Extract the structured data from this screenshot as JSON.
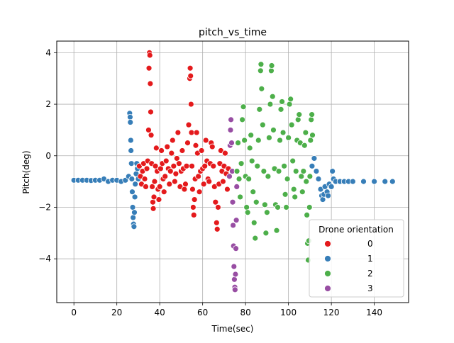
{
  "chart_data": {
    "type": "scatter",
    "title": "pitch_vs_time",
    "xlabel": "Time(sec)",
    "ylabel": "Pitch(deg)",
    "xlim": [
      -8,
      156
    ],
    "ylim": [
      -5.7,
      4.45
    ],
    "x_ticks": [
      0,
      20,
      40,
      60,
      80,
      100,
      120,
      140
    ],
    "y_ticks": [
      -4,
      -2,
      0,
      2,
      4
    ],
    "x_tick_labels": [
      "0",
      "20",
      "40",
      "60",
      "80",
      "100",
      "120",
      "140"
    ],
    "y_tick_labels": [
      "−4",
      "−2",
      "0",
      "2",
      "4"
    ],
    "grid": true,
    "legend": {
      "title": "Drone orientation",
      "placement": "lower-right",
      "entries": [
        {
          "label": "0",
          "color": "#e41a1c"
        },
        {
          "label": "1",
          "color": "#377eb8"
        },
        {
          "label": "2",
          "color": "#4daf4a"
        },
        {
          "label": "3",
          "color": "#984ea3"
        }
      ]
    },
    "series": [
      {
        "label": "1",
        "color": "#377eb8",
        "points": [
          [
            0,
            -0.95
          ],
          [
            2,
            -0.95
          ],
          [
            4,
            -0.95
          ],
          [
            6,
            -0.95
          ],
          [
            8,
            -0.96
          ],
          [
            10,
            -0.95
          ],
          [
            12,
            -0.95
          ],
          [
            14,
            -0.9
          ],
          [
            16,
            -1.0
          ],
          [
            18,
            -0.95
          ],
          [
            20,
            -0.95
          ],
          [
            22,
            -1.0
          ],
          [
            24,
            -0.95
          ],
          [
            25.5,
            -0.8
          ],
          [
            26,
            1.65
          ],
          [
            26.2,
            1.5
          ],
          [
            26.3,
            1.3
          ],
          [
            26.5,
            0.6
          ],
          [
            26.6,
            0.2
          ],
          [
            26.8,
            -0.3
          ],
          [
            27,
            -0.9
          ],
          [
            27.2,
            -1.4
          ],
          [
            27.4,
            -2.0
          ],
          [
            27.6,
            -2.4
          ],
          [
            27.8,
            -2.65
          ],
          [
            28,
            -2.75
          ],
          [
            28.2,
            -2.2
          ],
          [
            28.4,
            -1.6
          ],
          [
            28.6,
            -1.1
          ],
          [
            29,
            -0.7
          ],
          [
            29.3,
            -0.3
          ],
          [
            29.6,
            -0.5
          ],
          [
            30,
            -0.9
          ],
          [
            111,
            -0.4
          ],
          [
            112,
            -0.1
          ],
          [
            113,
            -0.6
          ],
          [
            114,
            -0.9
          ],
          [
            115,
            -1.3
          ],
          [
            115.5,
            -1.55
          ],
          [
            116,
            -1.7
          ],
          [
            116.5,
            -1.5
          ],
          [
            117,
            -1.2
          ],
          [
            118,
            -1.4
          ],
          [
            118.5,
            -1.55
          ],
          [
            119,
            -1.1
          ],
          [
            120,
            -1.2
          ],
          [
            120.5,
            -0.6
          ],
          [
            121,
            -0.9
          ],
          [
            122,
            -1.0
          ],
          [
            124,
            -1.0
          ],
          [
            126,
            -1.0
          ],
          [
            128,
            -1.0
          ],
          [
            130,
            -1.0
          ],
          [
            135,
            -1.0
          ],
          [
            140,
            -1.0
          ],
          [
            145,
            -1.0
          ],
          [
            148.5,
            -1.0
          ]
        ]
      },
      {
        "label": "0",
        "color": "#e41a1c",
        "points": [
          [
            30.5,
            -0.4
          ],
          [
            31,
            -0.8
          ],
          [
            31.5,
            -1.1
          ],
          [
            32,
            -0.6
          ],
          [
            32.5,
            -0.3
          ],
          [
            33,
            -0.9
          ],
          [
            33.5,
            -1.2
          ],
          [
            34,
            -0.5
          ],
          [
            34.4,
            -0.2
          ],
          [
            34.8,
            1.0
          ],
          [
            35,
            3.4
          ],
          [
            35.2,
            4.0
          ],
          [
            35.4,
            3.9
          ],
          [
            35.6,
            2.8
          ],
          [
            35.8,
            1.7
          ],
          [
            36,
            0.8
          ],
          [
            36.2,
            -0.3
          ],
          [
            36.5,
            -1.2
          ],
          [
            36.8,
            -1.8
          ],
          [
            37,
            -2.05
          ],
          [
            37.3,
            -1.6
          ],
          [
            37.6,
            -1.0
          ],
          [
            38,
            -0.4
          ],
          [
            38.4,
            0.3
          ],
          [
            38.8,
            -0.6
          ],
          [
            39.2,
            -1.3
          ],
          [
            39.6,
            -1.7
          ],
          [
            40,
            -1.2
          ],
          [
            40.4,
            -0.5
          ],
          [
            40.8,
            0.2
          ],
          [
            41.2,
            -0.3
          ],
          [
            41.6,
            -0.9
          ],
          [
            42,
            -1.4
          ],
          [
            42.5,
            -0.8
          ],
          [
            43,
            -0.2
          ],
          [
            43.5,
            0.35
          ],
          [
            44,
            -0.5
          ],
          [
            44.5,
            -1.1
          ],
          [
            45,
            -0.6
          ],
          [
            45.5,
            0.1
          ],
          [
            46,
            0.6
          ],
          [
            46.5,
            -0.4
          ],
          [
            47,
            -1.0
          ],
          [
            47.5,
            -0.7
          ],
          [
            48,
            -0.1
          ],
          [
            48.5,
            0.9
          ],
          [
            49,
            -0.3
          ],
          [
            49.5,
            -1.2
          ],
          [
            50,
            -0.6
          ],
          [
            50.5,
            0.2
          ],
          [
            51,
            -0.5
          ],
          [
            51.5,
            -1.3
          ],
          [
            52,
            -1.1
          ],
          [
            52.5,
            -0.4
          ],
          [
            53,
            0.5
          ],
          [
            53.5,
            1.2
          ],
          [
            54,
            3.0
          ],
          [
            54.2,
            3.4
          ],
          [
            54.4,
            3.1
          ],
          [
            54.6,
            2.0
          ],
          [
            54.8,
            0.9
          ],
          [
            55,
            -0.4
          ],
          [
            55.3,
            -1.3
          ],
          [
            55.6,
            -2.0
          ],
          [
            55.9,
            -2.3
          ],
          [
            56.2,
            -1.7
          ],
          [
            56.5,
            -0.9
          ],
          [
            56.8,
            0.4
          ],
          [
            57.2,
            0.9
          ],
          [
            57.6,
            0.1
          ],
          [
            58,
            -0.8
          ],
          [
            58.5,
            -1.4
          ],
          [
            59,
            -0.6
          ],
          [
            59.5,
            0.2
          ],
          [
            60,
            -0.5
          ],
          [
            60.5,
            -1.1
          ],
          [
            61,
            -0.4
          ],
          [
            61.5,
            0.6
          ],
          [
            62,
            -0.2
          ],
          [
            62.5,
            -0.9
          ],
          [
            63,
            -1.0
          ],
          [
            63.5,
            -0.3
          ],
          [
            64,
            0.5
          ],
          [
            64.5,
            0.35
          ],
          [
            65,
            -0.4
          ],
          [
            65.5,
            -1.2
          ],
          [
            66,
            -1.8
          ],
          [
            66.5,
            -2.6
          ],
          [
            66.8,
            -2.85
          ],
          [
            67.2,
            -2.0
          ],
          [
            67.6,
            -1.1
          ],
          [
            68,
            -0.3
          ],
          [
            68.5,
            0.2
          ],
          [
            69,
            -0.6
          ],
          [
            69.5,
            -1.0
          ],
          [
            70,
            -0.4
          ],
          [
            70.5,
            0.1
          ],
          [
            71,
            -0.7
          ],
          [
            71.5,
            -1.3
          ],
          [
            72,
            -0.5
          ]
        ]
      },
      {
        "label": "3",
        "color": "#984ea3",
        "points": [
          [
            72.5,
            -0.8
          ],
          [
            72.8,
            0.4
          ],
          [
            73,
            1.0
          ],
          [
            73.2,
            1.4
          ],
          [
            73.5,
            0.5
          ],
          [
            73.8,
            -0.6
          ],
          [
            74,
            -1.8
          ],
          [
            74.2,
            -2.7
          ],
          [
            74.4,
            -3.5
          ],
          [
            74.6,
            -4.3
          ],
          [
            74.8,
            -4.8
          ],
          [
            75,
            -5.1
          ],
          [
            75.1,
            -5.2
          ],
          [
            75.3,
            -4.6
          ],
          [
            75.5,
            -3.6
          ],
          [
            75.7,
            -2.5
          ],
          [
            75.9,
            -1.2
          ]
        ]
      },
      {
        "label": "2",
        "color": "#4daf4a",
        "points": [
          [
            76,
            -0.6
          ],
          [
            76.5,
            0.5
          ],
          [
            77,
            -0.9
          ],
          [
            77.5,
            -1.6
          ],
          [
            78,
            -0.3
          ],
          [
            78.5,
            1.4
          ],
          [
            79,
            1.9
          ],
          [
            79.5,
            0.6
          ],
          [
            80,
            -0.8
          ],
          [
            80.5,
            -2.0
          ],
          [
            81,
            -2.2
          ],
          [
            81.5,
            -0.9
          ],
          [
            82,
            0.3
          ],
          [
            82.5,
            0.8
          ],
          [
            83,
            -0.2
          ],
          [
            83.5,
            -1.4
          ],
          [
            84,
            -2.6
          ],
          [
            84.5,
            -3.2
          ],
          [
            85,
            -1.8
          ],
          [
            85.5,
            -0.4
          ],
          [
            86,
            0.6
          ],
          [
            86.5,
            1.8
          ],
          [
            87,
            3.3
          ],
          [
            87.2,
            3.55
          ],
          [
            87.5,
            2.6
          ],
          [
            88,
            1.2
          ],
          [
            88.5,
            -0.6
          ],
          [
            89,
            -1.9
          ],
          [
            89.5,
            -3.0
          ],
          [
            90,
            -2.2
          ],
          [
            90.5,
            -0.8
          ],
          [
            91,
            0.7
          ],
          [
            91.5,
            2.0
          ],
          [
            92,
            3.3
          ],
          [
            92.2,
            3.5
          ],
          [
            92.6,
            2.3
          ],
          [
            93,
            1.0
          ],
          [
            93.5,
            -0.5
          ],
          [
            94,
            -1.9
          ],
          [
            94.5,
            -2.9
          ],
          [
            95,
            -2.0
          ],
          [
            95.5,
            -0.6
          ],
          [
            96,
            0.6
          ],
          [
            96.5,
            1.8
          ],
          [
            97,
            2.1
          ],
          [
            97.5,
            0.9
          ],
          [
            98,
            -0.4
          ],
          [
            98.5,
            -1.5
          ],
          [
            99,
            -2.0
          ],
          [
            99.5,
            -0.9
          ],
          [
            100,
            0.7
          ],
          [
            100.5,
            2.0
          ],
          [
            101,
            2.2
          ],
          [
            101.5,
            1.2
          ],
          [
            102,
            -0.2
          ],
          [
            102.5,
            -1.3
          ],
          [
            103,
            -1.6
          ],
          [
            103.5,
            -0.6
          ],
          [
            104,
            0.6
          ],
          [
            104.5,
            1.4
          ],
          [
            105,
            1.6
          ],
          [
            105.5,
            0.5
          ],
          [
            106,
            -0.8
          ],
          [
            106.5,
            -1.4
          ],
          [
            107,
            -0.6
          ],
          [
            107.5,
            0.4
          ],
          [
            108,
            0.9
          ],
          [
            108.3,
            -1.0
          ],
          [
            108.6,
            -2.3
          ],
          [
            108.9,
            -3.4
          ],
          [
            109.2,
            -4.05
          ],
          [
            109.5,
            -3.3
          ],
          [
            109.8,
            -2.0
          ],
          [
            110,
            -0.8
          ],
          [
            110.3,
            0.6
          ],
          [
            110.6,
            1.4
          ],
          [
            110.9,
            1.6
          ],
          [
            111.2,
            0.8
          ]
        ]
      }
    ]
  }
}
